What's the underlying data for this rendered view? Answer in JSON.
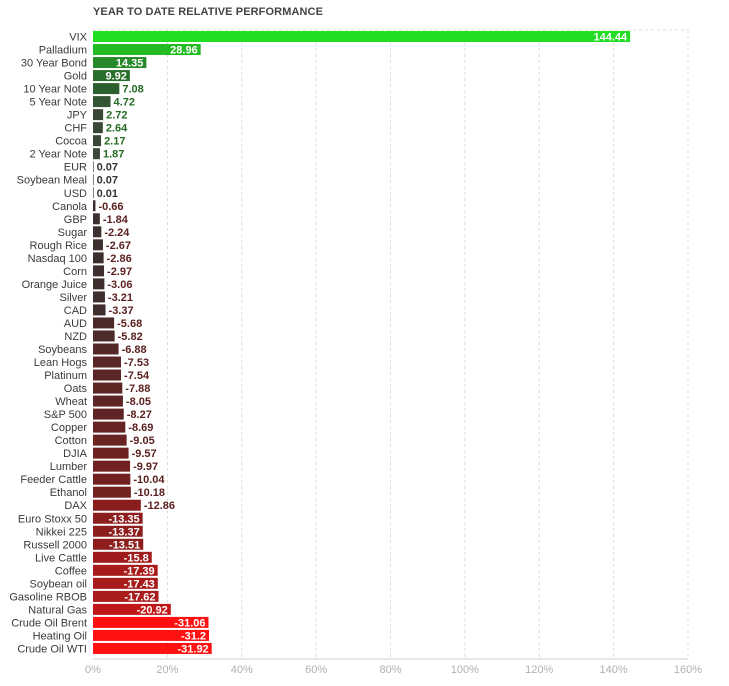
{
  "chart_data": {
    "type": "bar",
    "orientation": "horizontal",
    "title": "YEAR TO DATE RELATIVE PERFORMANCE",
    "xlim": [
      0,
      160
    ],
    "x_ticks": [
      "0%",
      "20%",
      "40%",
      "60%",
      "80%",
      "100%",
      "120%",
      "140%",
      "160%"
    ],
    "grid": true,
    "categories": [
      "VIX",
      "Palladium",
      "30 Year Bond",
      "Gold",
      "10 Year Note",
      "5 Year Note",
      "JPY",
      "CHF",
      "Cocoa",
      "2 Year Note",
      "EUR",
      "Soybean Meal",
      "USD",
      "Canola",
      "GBP",
      "Sugar",
      "Rough Rice",
      "Nasdaq 100",
      "Corn",
      "Orange Juice",
      "Silver",
      "CAD",
      "AUD",
      "NZD",
      "Soybeans",
      "Lean Hogs",
      "Platinum",
      "Oats",
      "Wheat",
      "S&P 500",
      "Copper",
      "Cotton",
      "DJIA",
      "Lumber",
      "Feeder Cattle",
      "Ethanol",
      "DAX",
      "Euro Stoxx 50",
      "Nikkei 225",
      "Russell 2000",
      "Live Cattle",
      "Coffee",
      "Soybean oil",
      "Gasoline RBOB",
      "Natural Gas",
      "Crude Oil Brent",
      "Heating Oil",
      "Crude Oil WTI"
    ],
    "value_labels": [
      "144.44",
      "28.96",
      "14.35",
      "9.92",
      "7.08",
      "4.72",
      "2.72",
      "2.64",
      "2.17",
      "1.87",
      "0.07",
      "0.07",
      "0.01",
      "-0.66",
      "-1.84",
      "-2.24",
      "-2.67",
      "-2.86",
      "-2.97",
      "-3.06",
      "-3.21",
      "-3.37",
      "-5.68",
      "-5.82",
      "-6.88",
      "-7.53",
      "-7.54",
      "-7.88",
      "-8.05",
      "-8.27",
      "-8.69",
      "-9.05",
      "-9.57",
      "-9.97",
      "-10.04",
      "-10.18",
      "-12.86",
      "-13.35",
      "-13.37",
      "-13.51",
      "-15.8",
      "-17.39",
      "-17.43",
      "-17.62",
      "-20.92",
      "-31.06",
      "-31.2",
      "-31.92"
    ],
    "values": [
      144.44,
      28.96,
      14.35,
      9.92,
      7.08,
      4.72,
      2.72,
      2.64,
      2.17,
      1.87,
      0.07,
      0.07,
      0.01,
      -0.66,
      -1.84,
      -2.24,
      -2.67,
      -2.86,
      -2.97,
      -3.06,
      -3.21,
      -3.37,
      -5.68,
      -5.82,
      -6.88,
      -7.53,
      -7.54,
      -7.88,
      -8.05,
      -8.27,
      -8.69,
      -9.05,
      -9.57,
      -9.97,
      -10.04,
      -10.18,
      -12.86,
      -13.35,
      -13.37,
      -13.51,
      -15.8,
      -17.39,
      -17.43,
      -17.62,
      -20.92,
      -31.06,
      -31.2,
      -31.92
    ],
    "bar_colors": [
      "#22dd22",
      "#22bb22",
      "#268a2a",
      "#2a6e2c",
      "#2d5e2e",
      "#335534",
      "#3a4838",
      "#3a4838",
      "#3a4838",
      "#3a4838",
      "#333333",
      "#333333",
      "#333333",
      "#3c2f2f",
      "#3c2f2f",
      "#3c2f2f",
      "#3e2e2e",
      "#3e2e2e",
      "#3e2e2e",
      "#3e2e2e",
      "#3e2e2e",
      "#3e2e2e",
      "#4b2a2a",
      "#4b2a2a",
      "#552828",
      "#5a2626",
      "#5a2626",
      "#5e2525",
      "#5e2525",
      "#602424",
      "#662424",
      "#6a2424",
      "#6e2222",
      "#712121",
      "#712121",
      "#732121",
      "#8a1e1e",
      "#8d1e1e",
      "#8d1e1e",
      "#8e1e1e",
      "#9e1c1c",
      "#a81b1b",
      "#a81b1b",
      "#aa1b1b",
      "#c01818",
      "#ff1111",
      "#ff1111",
      "#ff1111"
    ],
    "label_colors": {
      "positive": "#236b23",
      "neutral": "#333333",
      "negative": "#5a1f1f",
      "inside": "#ffffff"
    }
  }
}
